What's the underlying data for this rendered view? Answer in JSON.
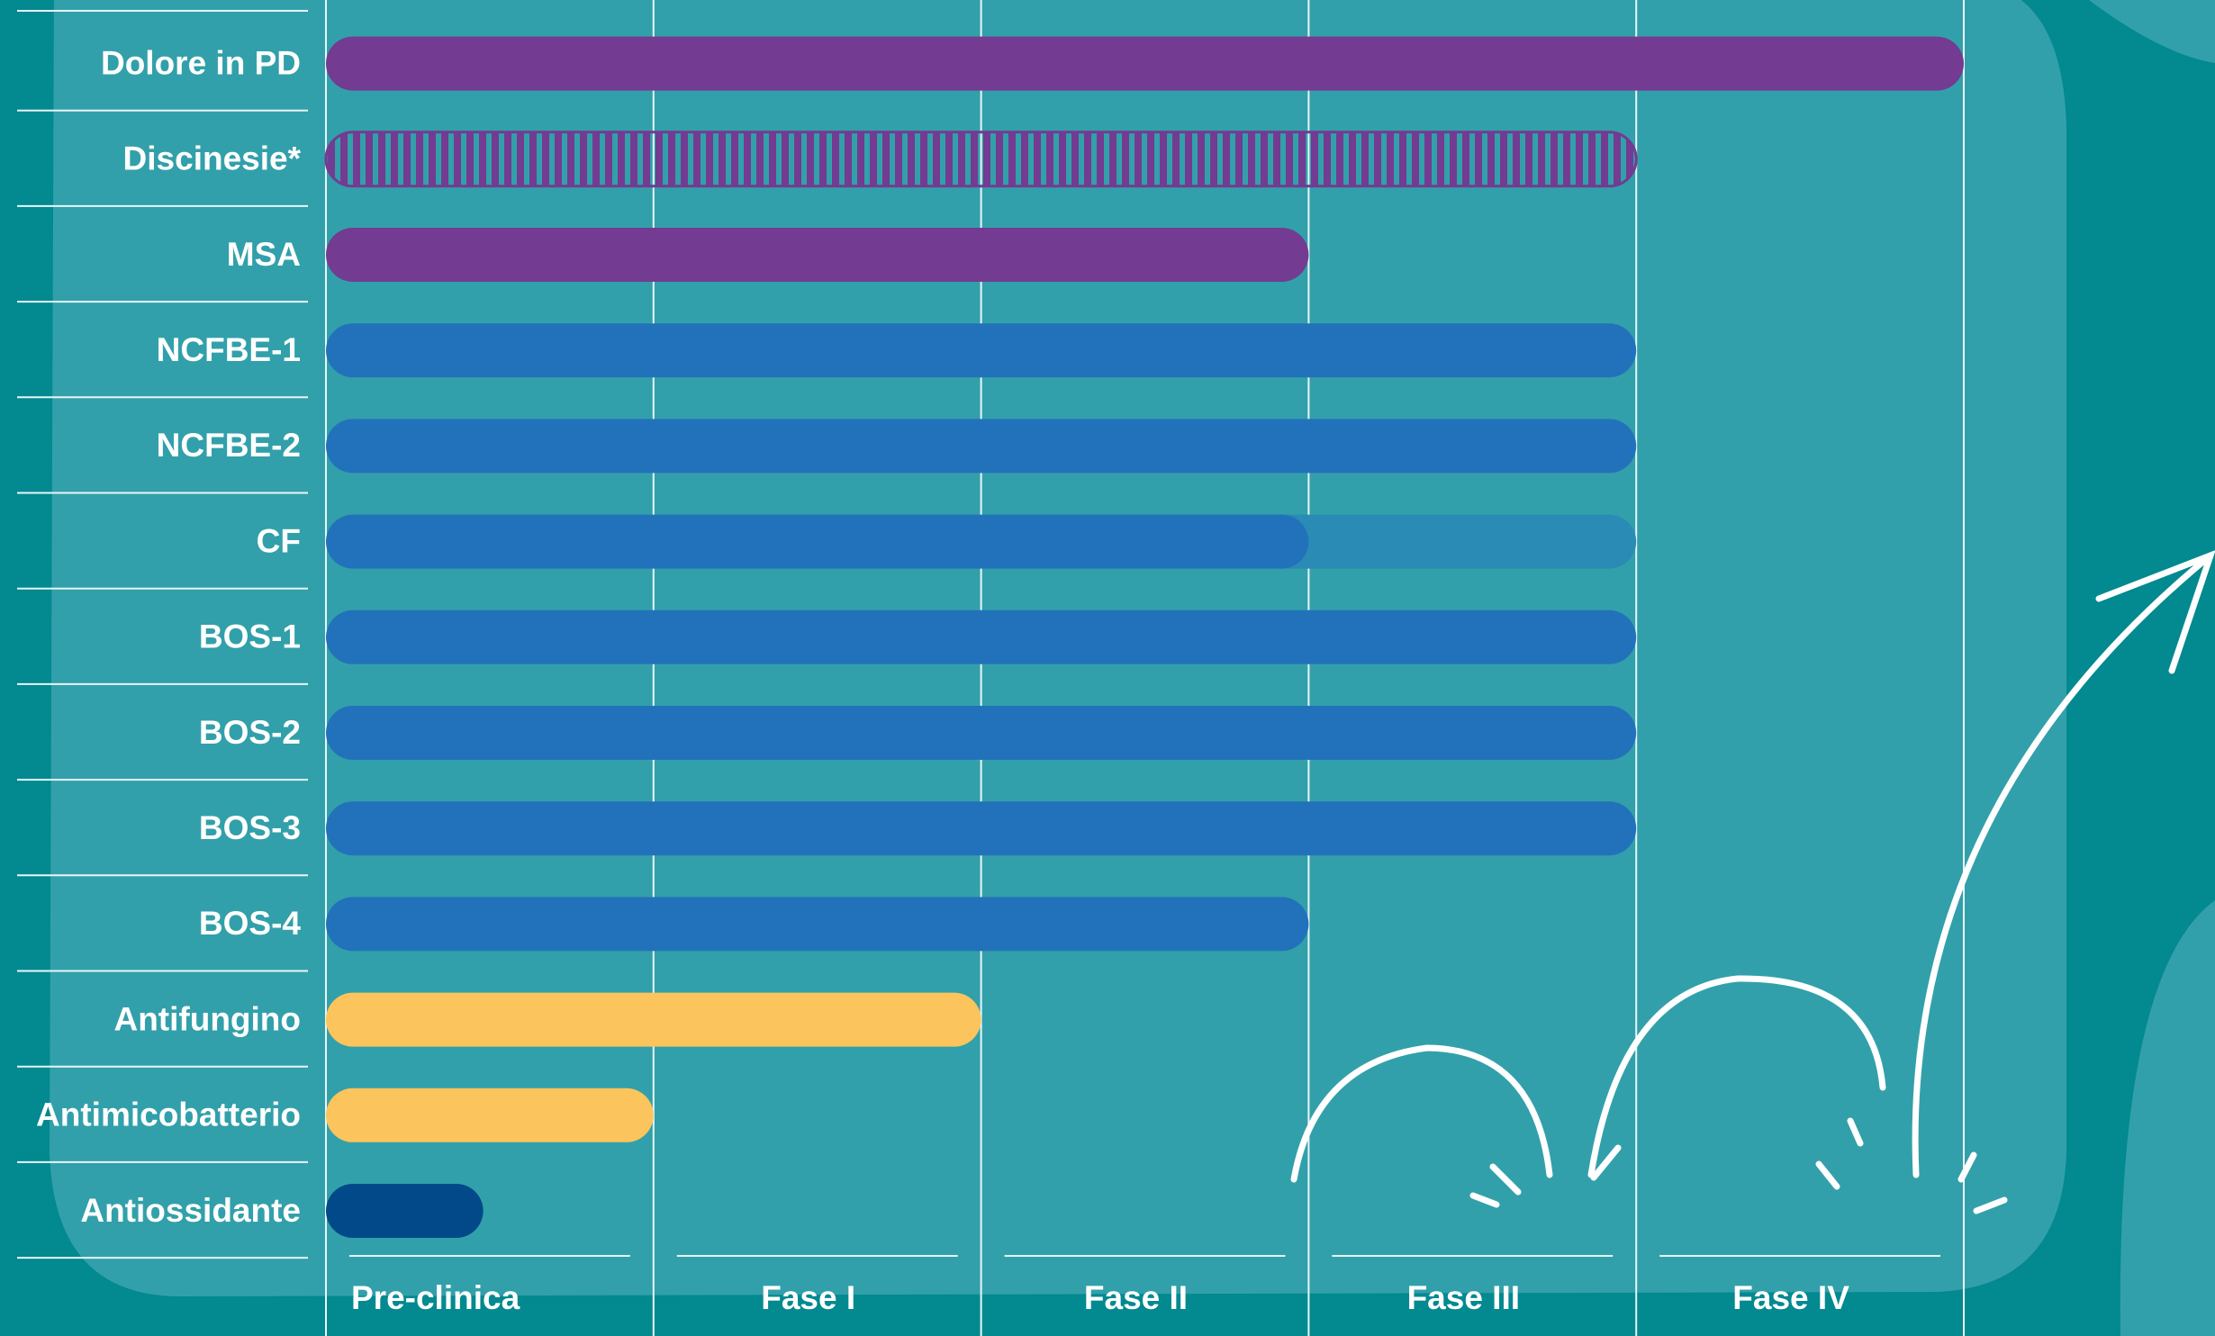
{
  "chart_data": {
    "type": "bar",
    "orientation": "horizontal",
    "categories": [
      "Dolore in PD",
      "Discinesie*",
      "MSA",
      "NCFBE-1",
      "NCFBE-2",
      "CF",
      "BOS-1",
      "BOS-2",
      "BOS-3",
      "BOS-4",
      "Antifungino",
      "Antimicobatterio",
      "Antiossidante"
    ],
    "values": [
      5,
      4,
      3,
      4,
      4,
      3,
      4,
      4,
      4,
      3,
      2,
      1,
      0.48
    ],
    "colors": [
      "#733b91",
      "#733b91",
      "#733b91",
      "#2272bb",
      "#2272bb",
      "#2272bb",
      "#2272bb",
      "#2272bb",
      "#2272bb",
      "#2272bb",
      "#fcc45c",
      "#fcc45c",
      "#02498a"
    ],
    "striped": [
      false,
      true,
      false,
      false,
      false,
      false,
      false,
      false,
      false,
      false,
      false,
      false,
      false
    ],
    "extension_values": [
      null,
      null,
      null,
      null,
      null,
      1,
      null,
      null,
      null,
      null,
      null,
      null,
      null
    ],
    "extension_color": "#2a8cb5",
    "phases": [
      "Pre-clinica",
      "Fase I",
      "Fase II",
      "Fase III",
      "Fase IV"
    ],
    "xlim": [
      0,
      5
    ],
    "xticks": [
      0,
      1,
      2,
      3,
      4,
      5
    ],
    "grid": true
  }
}
